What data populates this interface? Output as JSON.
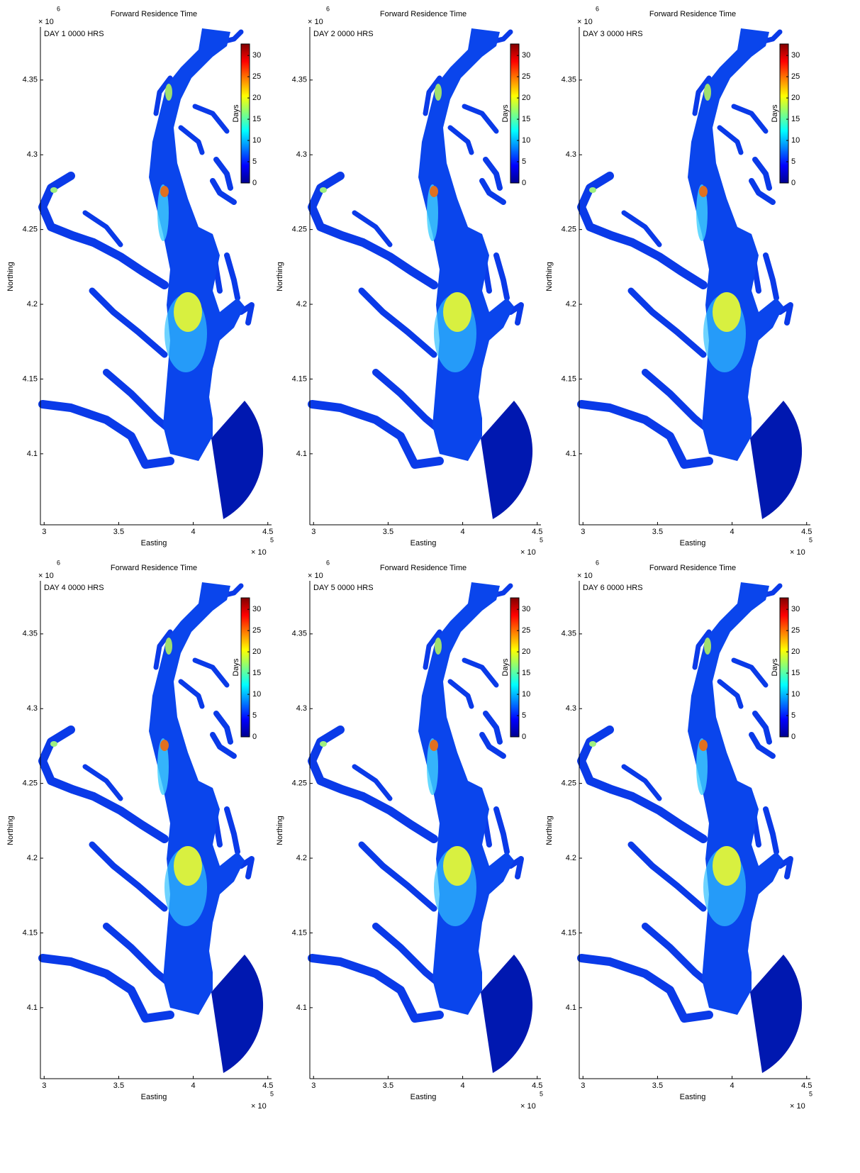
{
  "chart_data": [
    {
      "type": "map",
      "title": "Forward Residence Time",
      "annotation": "DAY 1 0000 HRS",
      "xlabel": "Easting",
      "ylabel": "Northing",
      "x_scale_label": "× 10",
      "x_scale_exponent": "5",
      "y_scale_label": "× 10",
      "y_scale_exponent": "6",
      "xlim": [
        297500,
        452500
      ],
      "ylim": [
        4052500,
        4385500
      ],
      "xticks": [
        {
          "value": 300000,
          "label": "3"
        },
        {
          "value": 350000,
          "label": "3.5"
        },
        {
          "value": 400000,
          "label": "4"
        },
        {
          "value": 450000,
          "label": "4.5"
        }
      ],
      "yticks": [
        {
          "value": 4100000,
          "label": "4.1"
        },
        {
          "value": 4150000,
          "label": "4.15"
        },
        {
          "value": 4200000,
          "label": "4.2"
        },
        {
          "value": 4250000,
          "label": "4.25"
        },
        {
          "value": 4300000,
          "label": "4.3"
        },
        {
          "value": 4350000,
          "label": "4.35"
        }
      ],
      "colorbar": {
        "label": "Days",
        "lim": [
          0,
          32.7
        ],
        "ticks": [
          0,
          5,
          10,
          15,
          20,
          25,
          30
        ],
        "colormap": "jet"
      }
    },
    {
      "type": "map",
      "title": "Forward Residence Time",
      "annotation": "DAY 2 0000 HRS",
      "xlabel": "Easting",
      "ylabel": "Northing",
      "x_scale_label": "× 10",
      "x_scale_exponent": "5",
      "y_scale_label": "× 10",
      "y_scale_exponent": "6",
      "xlim": [
        297500,
        452500
      ],
      "ylim": [
        4052500,
        4385500
      ],
      "xticks": [
        {
          "value": 300000,
          "label": "3"
        },
        {
          "value": 350000,
          "label": "3.5"
        },
        {
          "value": 400000,
          "label": "4"
        },
        {
          "value": 450000,
          "label": "4.5"
        }
      ],
      "yticks": [
        {
          "value": 4100000,
          "label": "4.1"
        },
        {
          "value": 4150000,
          "label": "4.15"
        },
        {
          "value": 4200000,
          "label": "4.2"
        },
        {
          "value": 4250000,
          "label": "4.25"
        },
        {
          "value": 4300000,
          "label": "4.3"
        },
        {
          "value": 4350000,
          "label": "4.35"
        }
      ],
      "colorbar": {
        "label": "Days",
        "lim": [
          0,
          32.7
        ],
        "ticks": [
          0,
          5,
          10,
          15,
          20,
          25,
          30
        ],
        "colormap": "jet"
      }
    },
    {
      "type": "map",
      "title": "Forward Residence Time",
      "annotation": "DAY 3 0000 HRS",
      "xlabel": "Easting",
      "ylabel": "Northing",
      "x_scale_label": "× 10",
      "x_scale_exponent": "5",
      "y_scale_label": "× 10",
      "y_scale_exponent": "6",
      "xlim": [
        297500,
        452500
      ],
      "ylim": [
        4052500,
        4385500
      ],
      "xticks": [
        {
          "value": 300000,
          "label": "3"
        },
        {
          "value": 350000,
          "label": "3.5"
        },
        {
          "value": 400000,
          "label": "4"
        },
        {
          "value": 450000,
          "label": "4.5"
        }
      ],
      "yticks": [
        {
          "value": 4100000,
          "label": "4.1"
        },
        {
          "value": 4150000,
          "label": "4.15"
        },
        {
          "value": 4200000,
          "label": "4.2"
        },
        {
          "value": 4250000,
          "label": "4.25"
        },
        {
          "value": 4300000,
          "label": "4.3"
        },
        {
          "value": 4350000,
          "label": "4.35"
        }
      ],
      "colorbar": {
        "label": "Days",
        "lim": [
          0,
          32.7
        ],
        "ticks": [
          0,
          5,
          10,
          15,
          20,
          25,
          30
        ],
        "colormap": "jet"
      }
    },
    {
      "type": "map",
      "title": "Forward Residence Time",
      "annotation": "DAY 4 0000 HRS",
      "xlabel": "Easting",
      "ylabel": "Northing",
      "x_scale_label": "× 10",
      "x_scale_exponent": "5",
      "y_scale_label": "× 10",
      "y_scale_exponent": "6",
      "xlim": [
        297500,
        452500
      ],
      "ylim": [
        4052500,
        4385500
      ],
      "xticks": [
        {
          "value": 300000,
          "label": "3"
        },
        {
          "value": 350000,
          "label": "3.5"
        },
        {
          "value": 400000,
          "label": "4"
        },
        {
          "value": 450000,
          "label": "4.5"
        }
      ],
      "yticks": [
        {
          "value": 4100000,
          "label": "4.1"
        },
        {
          "value": 4150000,
          "label": "4.15"
        },
        {
          "value": 4200000,
          "label": "4.2"
        },
        {
          "value": 4250000,
          "label": "4.25"
        },
        {
          "value": 4300000,
          "label": "4.3"
        },
        {
          "value": 4350000,
          "label": "4.35"
        }
      ],
      "colorbar": {
        "label": "Days",
        "lim": [
          0,
          32.7
        ],
        "ticks": [
          0,
          5,
          10,
          15,
          20,
          25,
          30
        ],
        "colormap": "jet"
      }
    },
    {
      "type": "map",
      "title": "Forward Residence Time",
      "annotation": "DAY 5 0000 HRS",
      "xlabel": "Easting",
      "ylabel": "Northing",
      "x_scale_label": "× 10",
      "x_scale_exponent": "5",
      "y_scale_label": "× 10",
      "y_scale_exponent": "6",
      "xlim": [
        297500,
        452500
      ],
      "ylim": [
        4052500,
        4385500
      ],
      "xticks": [
        {
          "value": 300000,
          "label": "3"
        },
        {
          "value": 350000,
          "label": "3.5"
        },
        {
          "value": 400000,
          "label": "4"
        },
        {
          "value": 450000,
          "label": "4.5"
        }
      ],
      "yticks": [
        {
          "value": 4100000,
          "label": "4.1"
        },
        {
          "value": 4150000,
          "label": "4.15"
        },
        {
          "value": 4200000,
          "label": "4.2"
        },
        {
          "value": 4250000,
          "label": "4.25"
        },
        {
          "value": 4300000,
          "label": "4.3"
        },
        {
          "value": 4350000,
          "label": "4.35"
        }
      ],
      "colorbar": {
        "label": "Days",
        "lim": [
          0,
          32.7
        ],
        "ticks": [
          0,
          5,
          10,
          15,
          20,
          25,
          30
        ],
        "colormap": "jet"
      }
    },
    {
      "type": "map",
      "title": "Forward Residence Time",
      "annotation": "DAY 6 0000 HRS",
      "xlabel": "Easting",
      "ylabel": "Northing",
      "x_scale_label": "× 10",
      "x_scale_exponent": "5",
      "y_scale_label": "× 10",
      "y_scale_exponent": "6",
      "xlim": [
        297500,
        452500
      ],
      "ylim": [
        4052500,
        4385500
      ],
      "xticks": [
        {
          "value": 300000,
          "label": "3"
        },
        {
          "value": 350000,
          "label": "3.5"
        },
        {
          "value": 400000,
          "label": "4"
        },
        {
          "value": 450000,
          "label": "4.5"
        }
      ],
      "yticks": [
        {
          "value": 4100000,
          "label": "4.1"
        },
        {
          "value": 4150000,
          "label": "4.15"
        },
        {
          "value": 4200000,
          "label": "4.2"
        },
        {
          "value": 4250000,
          "label": "4.25"
        },
        {
          "value": 4300000,
          "label": "4.3"
        },
        {
          "value": 4350000,
          "label": "4.35"
        }
      ],
      "colorbar": {
        "label": "Days",
        "lim": [
          0,
          32.7
        ],
        "ticks": [
          0,
          5,
          10,
          15,
          20,
          25,
          30
        ],
        "colormap": "jet"
      }
    }
  ]
}
